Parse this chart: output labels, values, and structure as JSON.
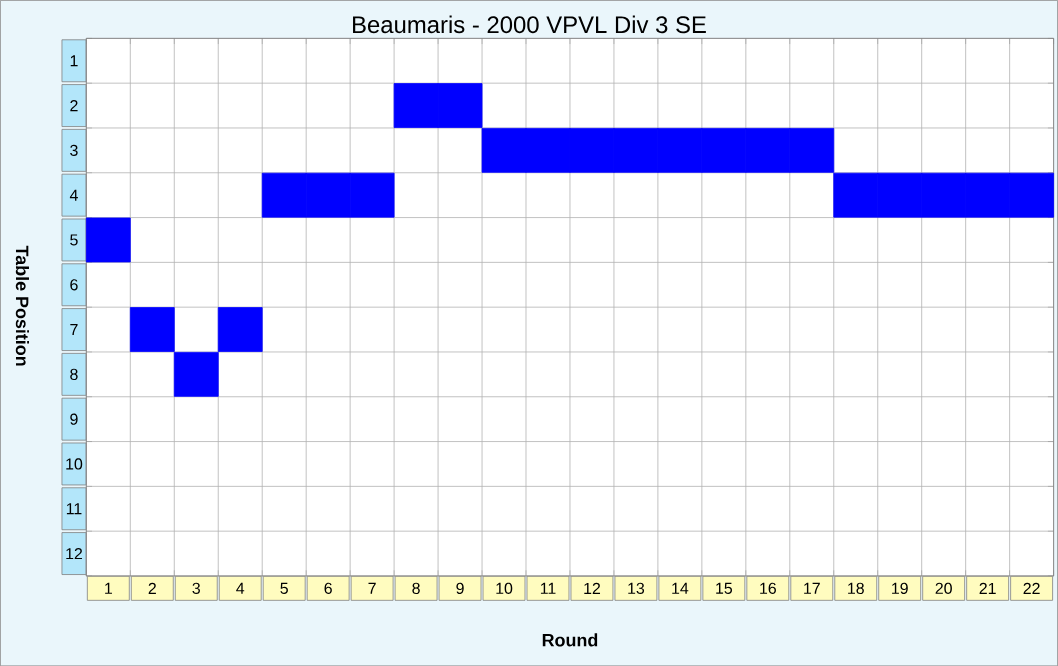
{
  "chart_data": {
    "type": "scatter",
    "title": "Beaumaris - 2000 VPVL Div 3 SE",
    "xlabel": "Round",
    "ylabel": "Table Position",
    "categories": [
      "1",
      "2",
      "3",
      "4",
      "5",
      "6",
      "7",
      "8",
      "9",
      "10",
      "11",
      "12",
      "13",
      "14",
      "15",
      "16",
      "17",
      "18",
      "19",
      "20",
      "21",
      "22"
    ],
    "values": [
      5,
      7,
      8,
      7,
      4,
      4,
      4,
      2,
      2,
      3,
      3,
      3,
      3,
      3,
      3,
      3,
      3,
      4,
      4,
      4,
      4,
      4
    ],
    "color": "#0000ff",
    "marker": "square",
    "grid": true,
    "ylim": [
      12.5,
      0.5
    ],
    "yticks": [
      1,
      2,
      3,
      4,
      5,
      6,
      7,
      8,
      9,
      10,
      11,
      12
    ]
  }
}
